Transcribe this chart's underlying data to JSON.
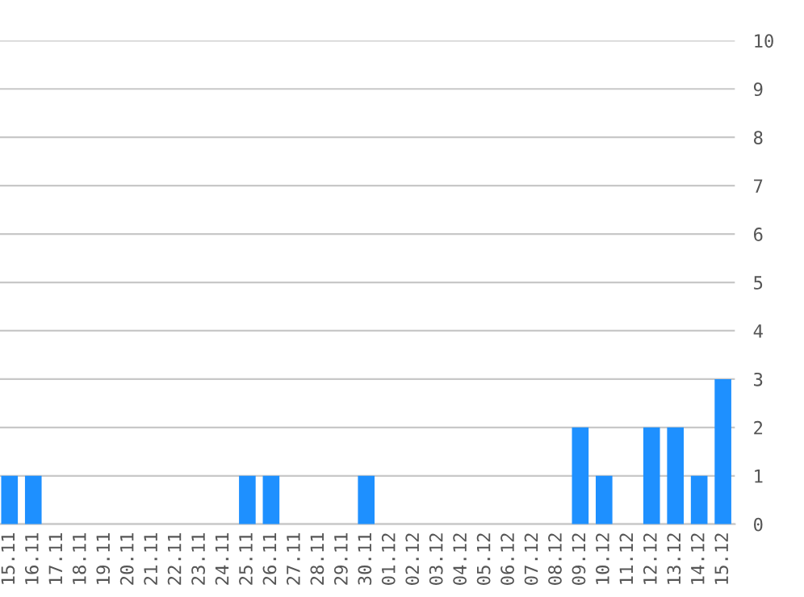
{
  "chart_data": {
    "type": "bar",
    "categories": [
      "15.11",
      "16.11",
      "17.11",
      "18.11",
      "19.11",
      "20.11",
      "21.11",
      "22.11",
      "23.11",
      "24.11",
      "25.11",
      "26.11",
      "27.11",
      "28.11",
      "29.11",
      "30.11",
      "01.12",
      "02.12",
      "03.12",
      "04.12",
      "05.12",
      "06.12",
      "07.12",
      "08.12",
      "09.12",
      "10.12",
      "11.12",
      "12.12",
      "13.12",
      "14.12",
      "15.12"
    ],
    "values": [
      1,
      1,
      0,
      0,
      0,
      0,
      0,
      0,
      0,
      0,
      1,
      1,
      0,
      0,
      0,
      1,
      0,
      0,
      0,
      0,
      0,
      0,
      0,
      0,
      2,
      1,
      0,
      2,
      2,
      1,
      3
    ],
    "color": "#1e90ff",
    "ylim": [
      0,
      10
    ],
    "yticks": [
      0,
      1,
      2,
      3,
      4,
      5,
      6,
      7,
      8,
      9,
      10
    ],
    "grid": "y"
  }
}
